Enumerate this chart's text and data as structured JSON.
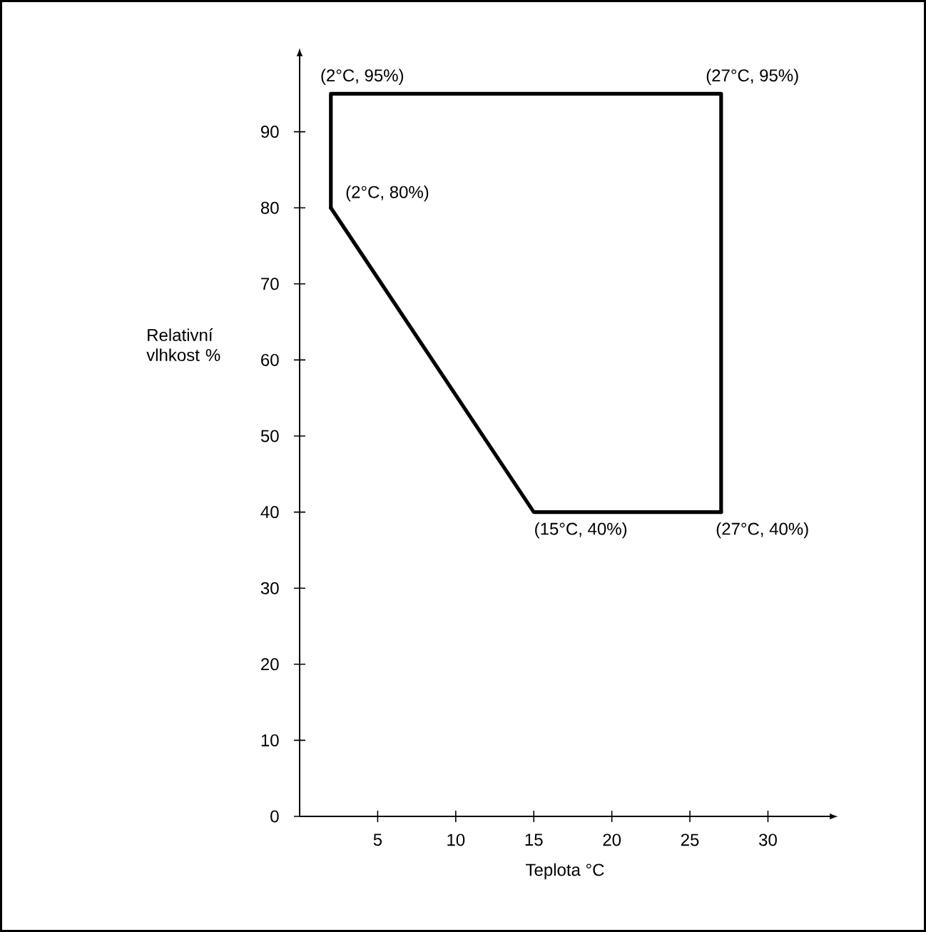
{
  "chart_data": {
    "type": "line",
    "xlabel": "Teplota °C",
    "ylabel": "Relativní vlhkost %",
    "series": [
      {
        "x": [
          2,
          2,
          27,
          27
        ],
        "values": [
          80,
          95,
          95,
          40
        ],
        "color": "#000000"
      },
      {
        "x": [
          2,
          15,
          27
        ],
        "values": [
          80,
          40,
          40
        ],
        "color": "#000000"
      }
    ],
    "marker": "none",
    "line_style": "solid",
    "xlim": [
      0,
      34
    ],
    "ylim": [
      0,
      100
    ],
    "xticks": [
      5,
      10,
      15,
      20,
      25,
      30
    ],
    "yticks": [
      0,
      10,
      20,
      30,
      40,
      50,
      60,
      70,
      80,
      90
    ],
    "annotations": [
      {
        "text": "(2°C, 95%)",
        "x": 2,
        "y": 95
      },
      {
        "text": "(27°C, 95%)",
        "x": 27,
        "y": 95
      },
      {
        "text": "(2°C, 80%)",
        "x": 2,
        "y": 80
      },
      {
        "text": "(15°C, 40%)",
        "x": 15,
        "y": 40
      },
      {
        "text": "(27°C, 40%)",
        "x": 27,
        "y": 40
      }
    ]
  }
}
